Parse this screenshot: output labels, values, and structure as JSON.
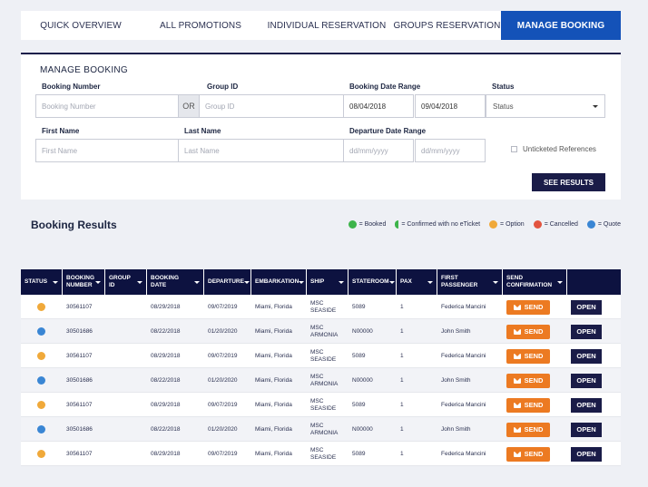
{
  "tabs": [
    {
      "label": "QUICK OVERVIEW",
      "active": false
    },
    {
      "label": "ALL PROMOTIONS",
      "active": false
    },
    {
      "label": "INDIVIDUAL RESERVATION",
      "active": false
    },
    {
      "label": "GROUPS RESERVATION",
      "active": false
    },
    {
      "label": "MANAGE BOOKING",
      "active": true
    }
  ],
  "search": {
    "title": "MANAGE BOOKING",
    "booking_number_label": "Booking Number",
    "booking_number_placeholder": "Booking Number",
    "or_label": "OR",
    "group_id_label": "Group ID",
    "group_id_placeholder": "Group ID",
    "booking_date_range_label": "Booking Date Range",
    "booking_date_from": "08/04/2018",
    "booking_date_to": "09/04/2018",
    "status_label": "Status",
    "status_value": "Status",
    "first_name_label": "First Name",
    "first_name_placeholder": "First Name",
    "last_name_label": "Last Name",
    "last_name_placeholder": "Last Name",
    "departure_date_range_label": "Departure Date Range",
    "departure_from_placeholder": "dd/mm/yyyy",
    "departure_to_placeholder": "dd/mm/yyyy",
    "unticketed_label": "Unticketed References",
    "see_results_label": "SEE RESULTS"
  },
  "results": {
    "title": "Booking Results",
    "legend": [
      {
        "label": "= Booked",
        "color": "#3db44a",
        "shape": "dot"
      },
      {
        "label": "= Confirmed with no eTicket",
        "color": "#3db44a",
        "shape": "half"
      },
      {
        "label": "= Option",
        "color": "#f0a93a",
        "shape": "dot"
      },
      {
        "label": "= Cancelled",
        "color": "#e2543f",
        "shape": "dot"
      },
      {
        "label": "= Quote",
        "color": "#3a86d4",
        "shape": "dot"
      }
    ]
  },
  "table": {
    "headers": [
      "STATUS",
      "BOOKING NUMBER",
      "GROUP ID",
      "BOOKING DATE",
      "DEPARTURE",
      "EMBARKATION",
      "SHIP",
      "STATEROOM",
      "PAX",
      "FIRST PASSENGER",
      "SEND CONFIRMATION"
    ],
    "send_label": "SEND",
    "open_label": "OPEN",
    "rows": [
      {
        "status_color": "#f0a93a",
        "booking_number": "30561107",
        "group_id": "",
        "booking_date": "08/29/2018",
        "departure": "09/07/2019",
        "embarkation": "Miami, Florida",
        "ship": "MSC SEASIDE",
        "stateroom": "5089",
        "pax": "1",
        "first_passenger": "Federica Mancini"
      },
      {
        "status_color": "#3a86d4",
        "booking_number": "30501686",
        "group_id": "",
        "booking_date": "08/22/2018",
        "departure": "01/20/2020",
        "embarkation": "Miami, Florida",
        "ship": "MSC ARMONIA",
        "stateroom": "N00000",
        "pax": "1",
        "first_passenger": "John Smith"
      },
      {
        "status_color": "#f0a93a",
        "booking_number": "30561107",
        "group_id": "",
        "booking_date": "08/29/2018",
        "departure": "09/07/2019",
        "embarkation": "Miami, Florida",
        "ship": "MSC SEASIDE",
        "stateroom": "5089",
        "pax": "1",
        "first_passenger": "Federica Mancini"
      },
      {
        "status_color": "#3a86d4",
        "booking_number": "30501686",
        "group_id": "",
        "booking_date": "08/22/2018",
        "departure": "01/20/2020",
        "embarkation": "Miami, Florida",
        "ship": "MSC ARMONIA",
        "stateroom": "N00000",
        "pax": "1",
        "first_passenger": "John Smith"
      },
      {
        "status_color": "#f0a93a",
        "booking_number": "30561107",
        "group_id": "",
        "booking_date": "08/29/2018",
        "departure": "09/07/2019",
        "embarkation": "Miami, Florida",
        "ship": "MSC SEASIDE",
        "stateroom": "5089",
        "pax": "1",
        "first_passenger": "Federica Mancini"
      },
      {
        "status_color": "#3a86d4",
        "booking_number": "30501686",
        "group_id": "",
        "booking_date": "08/22/2018",
        "departure": "01/20/2020",
        "embarkation": "Miami, Florida",
        "ship": "MSC ARMONIA",
        "stateroom": "N00000",
        "pax": "1",
        "first_passenger": "John Smith"
      },
      {
        "status_color": "#f0a93a",
        "booking_number": "30561107",
        "group_id": "",
        "booking_date": "08/29/2018",
        "departure": "09/07/2019",
        "embarkation": "Miami, Florida",
        "ship": "MSC SEASIDE",
        "stateroom": "5089",
        "pax": "1",
        "first_passenger": "Federica Mancini"
      }
    ]
  }
}
